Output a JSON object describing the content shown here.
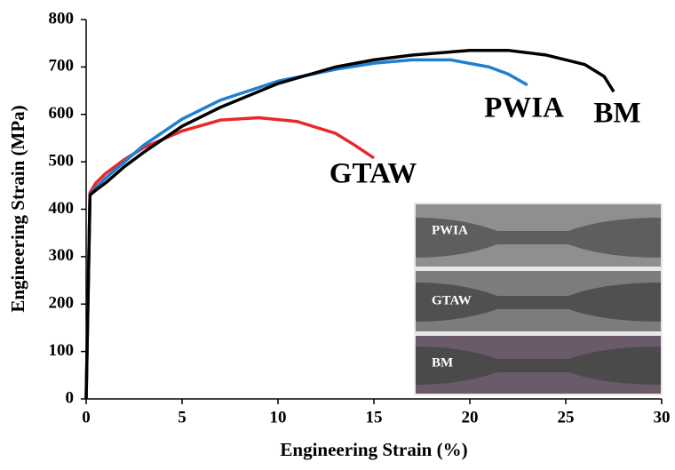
{
  "chart_data": {
    "type": "line",
    "xlabel": "Engineering Strain (%)",
    "ylabel": "Engineering Strain (MPa)",
    "xlim": [
      0,
      30
    ],
    "xticks": [
      0,
      5,
      10,
      15,
      20,
      25,
      30
    ],
    "ylim": [
      0,
      800
    ],
    "yticks": [
      0,
      100,
      200,
      300,
      400,
      500,
      600,
      700,
      800
    ],
    "series": [
      {
        "name": "BM",
        "color": "#000000",
        "x": [
          0,
          0.2,
          0.5,
          1,
          2,
          3,
          5,
          7,
          10,
          13,
          15,
          17,
          20,
          22,
          24,
          26,
          27,
          27.5
        ],
        "values": [
          0,
          430,
          440,
          455,
          490,
          520,
          575,
          615,
          665,
          700,
          715,
          725,
          735,
          735,
          725,
          705,
          680,
          648
        ]
      },
      {
        "name": "PWIA",
        "color": "#1f7fd0",
        "x": [
          0,
          0.2,
          0.5,
          1,
          2,
          3,
          5,
          7,
          10,
          13,
          15,
          17,
          19,
          21,
          22,
          23
        ],
        "values": [
          0,
          430,
          445,
          465,
          500,
          535,
          590,
          630,
          670,
          695,
          708,
          715,
          715,
          700,
          685,
          662
        ]
      },
      {
        "name": "GTAW",
        "color": "#e8282a",
        "x": [
          0,
          0.2,
          0.5,
          1,
          2,
          3,
          5,
          7,
          9,
          11,
          13,
          14,
          15
        ],
        "values": [
          0,
          435,
          455,
          475,
          505,
          530,
          565,
          588,
          593,
          585,
          560,
          535,
          508
        ]
      }
    ],
    "inset_labels": [
      "PWIA",
      "GTAW",
      "BM"
    ]
  }
}
